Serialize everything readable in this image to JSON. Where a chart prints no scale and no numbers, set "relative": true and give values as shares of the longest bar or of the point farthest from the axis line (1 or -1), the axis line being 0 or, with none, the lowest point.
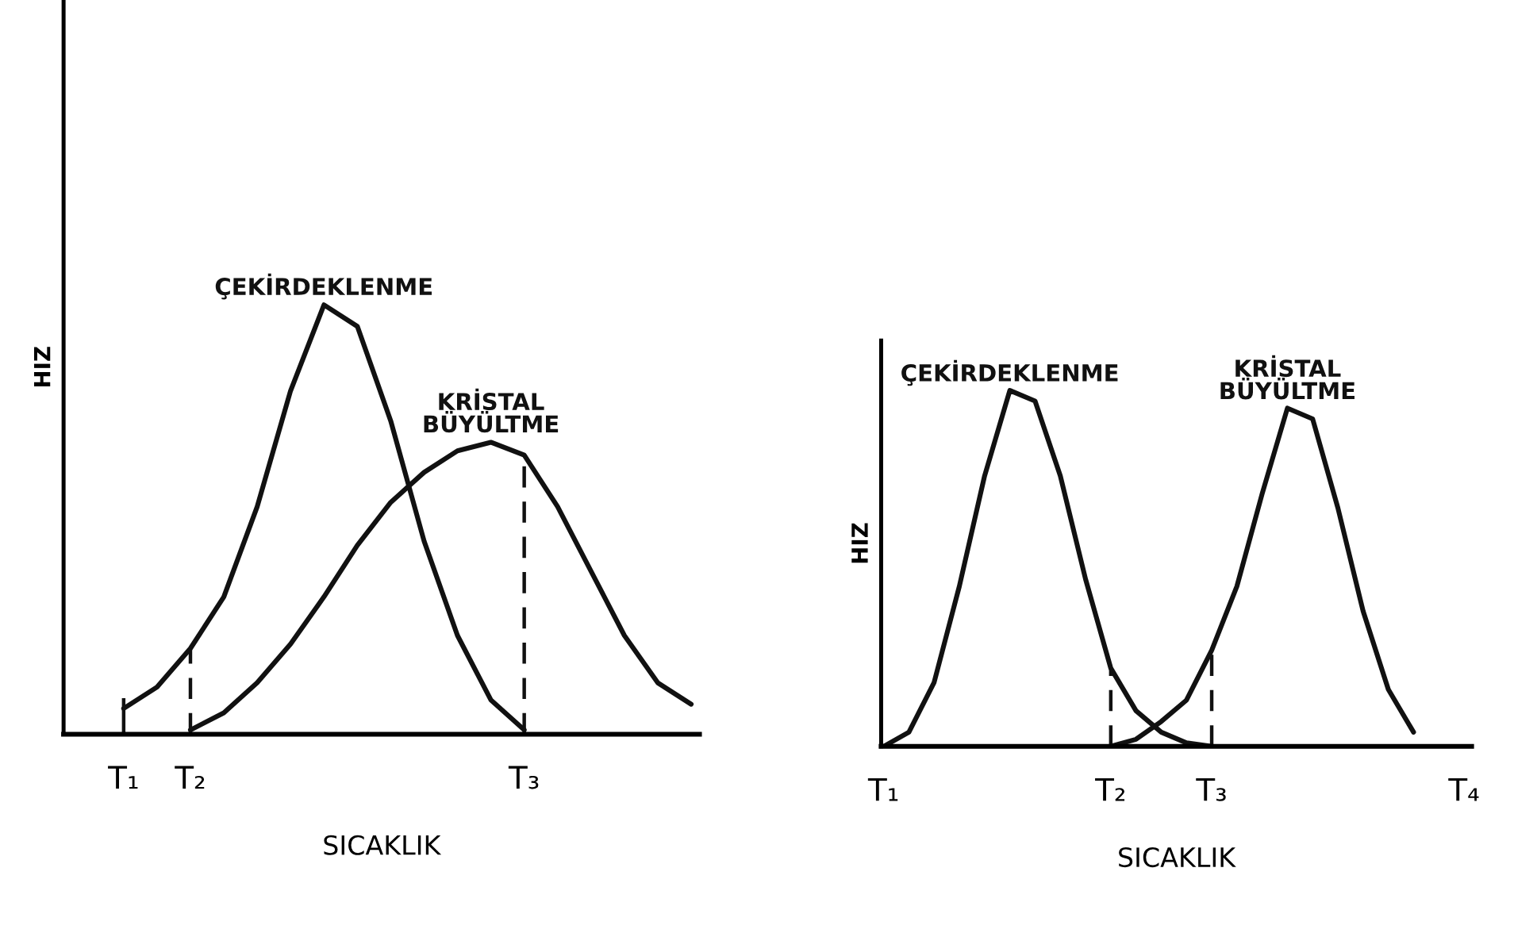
{
  "chart_data": [
    {
      "type": "line",
      "relative": true,
      "xlabel": "SICAKLIK",
      "ylabel": "HIZ",
      "grid": false,
      "legend": false,
      "marker": "none",
      "line_style": "solid",
      "tick_labels": "x",
      "categories": [
        "T₁",
        null,
        "T₂",
        null,
        null,
        null,
        null,
        null,
        null,
        null,
        null,
        null,
        "T₃",
        null,
        null,
        null,
        null,
        null
      ],
      "series": [
        {
          "name": "ÇEKİRDEKLENME",
          "color": "#111111",
          "values": [
            0.06,
            0.11,
            0.2,
            0.32,
            0.53,
            0.8,
            1.0,
            0.95,
            0.73,
            0.45,
            0.23,
            0.08,
            0.01,
            null,
            null,
            null,
            null,
            null
          ]
        },
        {
          "name": "KRİSTAL\nBÜYÜLTME",
          "color": "#111111",
          "values": [
            null,
            null,
            0.01,
            0.05,
            0.12,
            0.21,
            0.32,
            0.44,
            0.54,
            0.61,
            0.66,
            0.68,
            0.65,
            0.53,
            0.38,
            0.23,
            0.12,
            0.07
          ]
        }
      ],
      "ref_lines": [
        {
          "axis": "x",
          "value": "T₁",
          "line_style": "solid"
        },
        {
          "axis": "x",
          "value": "T₂",
          "line_style": "dashed"
        },
        {
          "axis": "x",
          "value": "T₃",
          "line_style": "dashed"
        }
      ]
    },
    {
      "type": "line",
      "relative": true,
      "xlabel": "SICAKLIK",
      "ylabel": "HIZ",
      "grid": false,
      "legend": false,
      "marker": "none",
      "line_style": "solid",
      "tick_labels": "x",
      "categories": [
        "T₁",
        null,
        null,
        null,
        null,
        null,
        null,
        null,
        null,
        "T₂",
        null,
        null,
        null,
        "T₃",
        null,
        null,
        null,
        null,
        null,
        null,
        null,
        null,
        null,
        "T₄"
      ],
      "series": [
        {
          "name": "ÇEKİRDEKLENME",
          "color": "#111111",
          "values": [
            0,
            0.04,
            0.18,
            0.45,
            0.76,
            1.0,
            0.97,
            0.76,
            0.47,
            0.22,
            0.1,
            0.04,
            0.01,
            0,
            null,
            null,
            null,
            null,
            null,
            null,
            null,
            null,
            null,
            null
          ]
        },
        {
          "name": "KRİSTAL\nBÜYÜLTME",
          "color": "#111111",
          "values": [
            null,
            null,
            null,
            null,
            null,
            null,
            null,
            null,
            null,
            0,
            0.02,
            0.07,
            0.13,
            0.27,
            0.45,
            0.71,
            0.95,
            0.92,
            0.67,
            0.38,
            0.16,
            0.04,
            null,
            null
          ]
        }
      ],
      "ref_lines": [
        {
          "axis": "x",
          "value": "T₂",
          "line_style": "dashed"
        },
        {
          "axis": "x",
          "value": "T₃",
          "line_style": "dashed"
        }
      ]
    }
  ]
}
